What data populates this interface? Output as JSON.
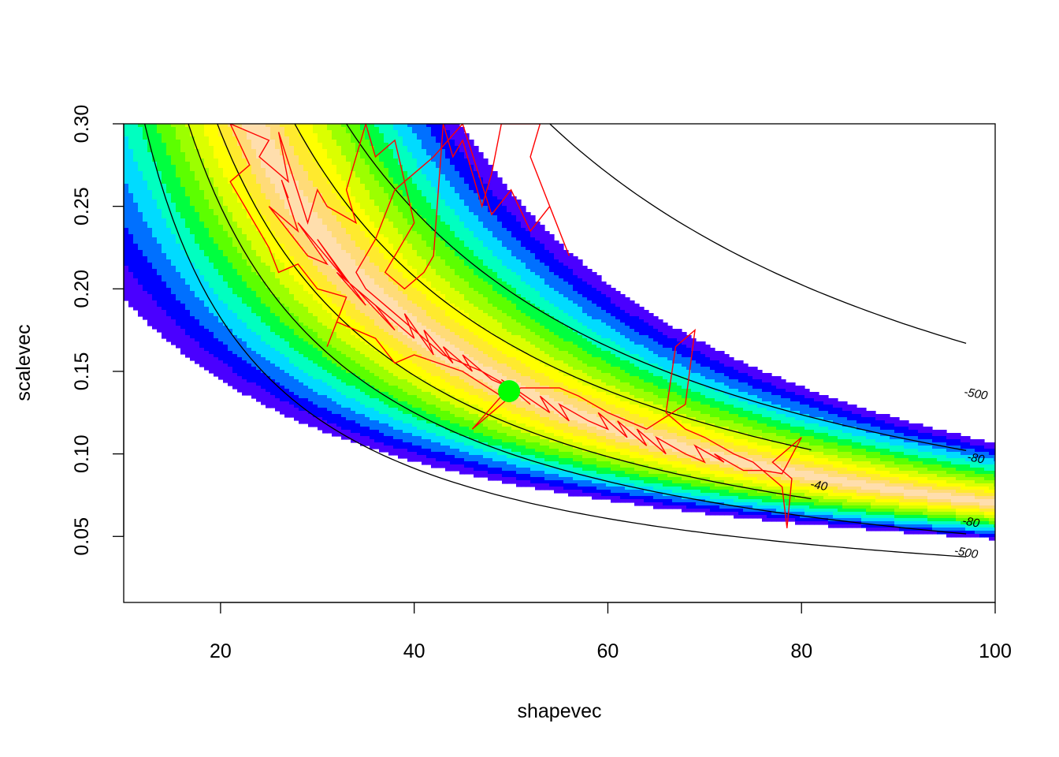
{
  "chart_data": {
    "type": "heatmap",
    "title": "",
    "xlabel": "shapevec",
    "ylabel": "scalevec",
    "xlim": [
      10,
      100
    ],
    "ylim": [
      0.01,
      0.3
    ],
    "x_ticks": [
      20,
      40,
      60,
      80,
      100
    ],
    "y_ticks": [
      0.05,
      0.1,
      0.15,
      0.2,
      0.25,
      0.3
    ],
    "x_tick_labels": [
      "20",
      "40",
      "60",
      "80",
      "100"
    ],
    "y_tick_labels": [
      "0.05",
      "0.10",
      "0.15",
      "0.20",
      "0.25",
      "0.30"
    ],
    "grid": false,
    "legend": "none",
    "surface": {
      "description_ridge": "scale ≈ 7 / shape",
      "band_colors": [
        "#FFDEAD",
        "#FFDB78",
        "#FFEA2E",
        "#FFFF00",
        "#DBFF00",
        "#9CFF00",
        "#5CFF00",
        "#00FF3F",
        "#00FFC0",
        "#00DBFF",
        "#0070FF",
        "#0000FF",
        "#4A00FF"
      ]
    },
    "contours": [
      {
        "label": "-40",
        "k_inner": 5.9,
        "k_outer": 8.3
      },
      {
        "label": "-80",
        "k_inner": 5.0,
        "k_outer": 9.9
      },
      {
        "label": "-500",
        "k_inner": 3.65,
        "k_outer": 16.2
      }
    ],
    "contour_labels": [
      {
        "text": "-40",
        "x": 81.8,
        "y": 0.081
      },
      {
        "text": "-80",
        "x": 98.0,
        "y": 0.0975
      },
      {
        "text": "-80",
        "x": 97.5,
        "y": 0.0588
      },
      {
        "text": "-500",
        "x": 98.0,
        "y": 0.1365
      },
      {
        "text": "-500",
        "x": 97.0,
        "y": 0.0403
      }
    ],
    "trace": {
      "color": "#FF0000",
      "points": [
        [
          27,
          0.255
        ],
        [
          26.3,
          0.266
        ],
        [
          28,
          0.235
        ],
        [
          25,
          0.25
        ],
        [
          29,
          0.22
        ],
        [
          31,
          0.215
        ],
        [
          28,
          0.24
        ],
        [
          33,
          0.205
        ],
        [
          30,
          0.23
        ],
        [
          35,
          0.19
        ],
        [
          32,
          0.21
        ],
        [
          37,
          0.185
        ],
        [
          34,
          0.2
        ],
        [
          38,
          0.175
        ],
        [
          36,
          0.19
        ],
        [
          40,
          0.17
        ],
        [
          39,
          0.185
        ],
        [
          42,
          0.16
        ],
        [
          41,
          0.175
        ],
        [
          44,
          0.155
        ],
        [
          43,
          0.165
        ],
        [
          46,
          0.15
        ],
        [
          45,
          0.16
        ],
        [
          48,
          0.145
        ],
        [
          50,
          0.14
        ],
        [
          52,
          0.13
        ],
        [
          49,
          0.145
        ],
        [
          54,
          0.125
        ],
        [
          53,
          0.135
        ],
        [
          56,
          0.12
        ],
        [
          55,
          0.13
        ],
        [
          58,
          0.12
        ],
        [
          60,
          0.115
        ],
        [
          59,
          0.125
        ],
        [
          62,
          0.11
        ],
        [
          61,
          0.12
        ],
        [
          64,
          0.105
        ],
        [
          63,
          0.115
        ],
        [
          66,
          0.1
        ],
        [
          65,
          0.11
        ],
        [
          68,
          0.1
        ],
        [
          70,
          0.095
        ],
        [
          69,
          0.105
        ],
        [
          72,
          0.095
        ],
        [
          71,
          0.1
        ],
        [
          74,
          0.09
        ],
        [
          76,
          0.09
        ],
        [
          78,
          0.088
        ],
        [
          80,
          0.11
        ],
        [
          77,
          0.095
        ],
        [
          79,
          0.085
        ],
        [
          78.5,
          0.055
        ],
        [
          78,
          0.08
        ],
        [
          75,
          0.095
        ],
        [
          73,
          0.1
        ],
        [
          70,
          0.11
        ],
        [
          68,
          0.115
        ],
        [
          66,
          0.125
        ],
        [
          67,
          0.165
        ],
        [
          69,
          0.175
        ],
        [
          68,
          0.13
        ],
        [
          64,
          0.115
        ],
        [
          60,
          0.125
        ],
        [
          57,
          0.135
        ],
        [
          55,
          0.14
        ],
        [
          51,
          0.14
        ],
        [
          46,
          0.115
        ],
        [
          49,
          0.135
        ],
        [
          45,
          0.15
        ],
        [
          40,
          0.16
        ],
        [
          38,
          0.155
        ],
        [
          36,
          0.17
        ],
        [
          32,
          0.18
        ],
        [
          31,
          0.165
        ],
        [
          33,
          0.195
        ],
        [
          30,
          0.2
        ],
        [
          28,
          0.215
        ],
        [
          26,
          0.21
        ],
        [
          25,
          0.225
        ],
        [
          22,
          0.255
        ],
        [
          21,
          0.265
        ],
        [
          23,
          0.275
        ],
        [
          21,
          0.3
        ],
        [
          25,
          0.29
        ],
        [
          24,
          0.28
        ],
        [
          27,
          0.265
        ],
        [
          26,
          0.295
        ],
        [
          29,
          0.24
        ],
        [
          30,
          0.26
        ],
        [
          31,
          0.25
        ],
        [
          34,
          0.24
        ],
        [
          33,
          0.26
        ],
        [
          35,
          0.3
        ],
        [
          36,
          0.28
        ],
        [
          38,
          0.29
        ],
        [
          40,
          0.24
        ],
        [
          37,
          0.21
        ],
        [
          39,
          0.2
        ],
        [
          41,
          0.21
        ],
        [
          42,
          0.22
        ],
        [
          43,
          0.3
        ],
        [
          44,
          0.28
        ],
        [
          45,
          0.29
        ],
        [
          46,
          0.27
        ],
        [
          47,
          0.25
        ],
        [
          48,
          0.27
        ],
        [
          49,
          0.3
        ],
        [
          50,
          0.3
        ],
        [
          53,
          0.3
        ],
        [
          52,
          0.28
        ],
        [
          56,
          0.22
        ],
        [
          54,
          0.25
        ],
        [
          52,
          0.235
        ],
        [
          50,
          0.26
        ],
        [
          48,
          0.245
        ],
        [
          45,
          0.3
        ],
        [
          42,
          0.28
        ],
        [
          40,
          0.27
        ],
        [
          38,
          0.26
        ],
        [
          36,
          0.23
        ],
        [
          34,
          0.21
        ],
        [
          35,
          0.2
        ],
        [
          37,
          0.19
        ],
        [
          39,
          0.18
        ],
        [
          41,
          0.17
        ],
        [
          43,
          0.16
        ],
        [
          45,
          0.155
        ],
        [
          47,
          0.15
        ],
        [
          50,
          0.14
        ]
      ]
    },
    "highlight_point": {
      "x": 49.8,
      "y": 0.138,
      "color": "#00FF00"
    }
  }
}
